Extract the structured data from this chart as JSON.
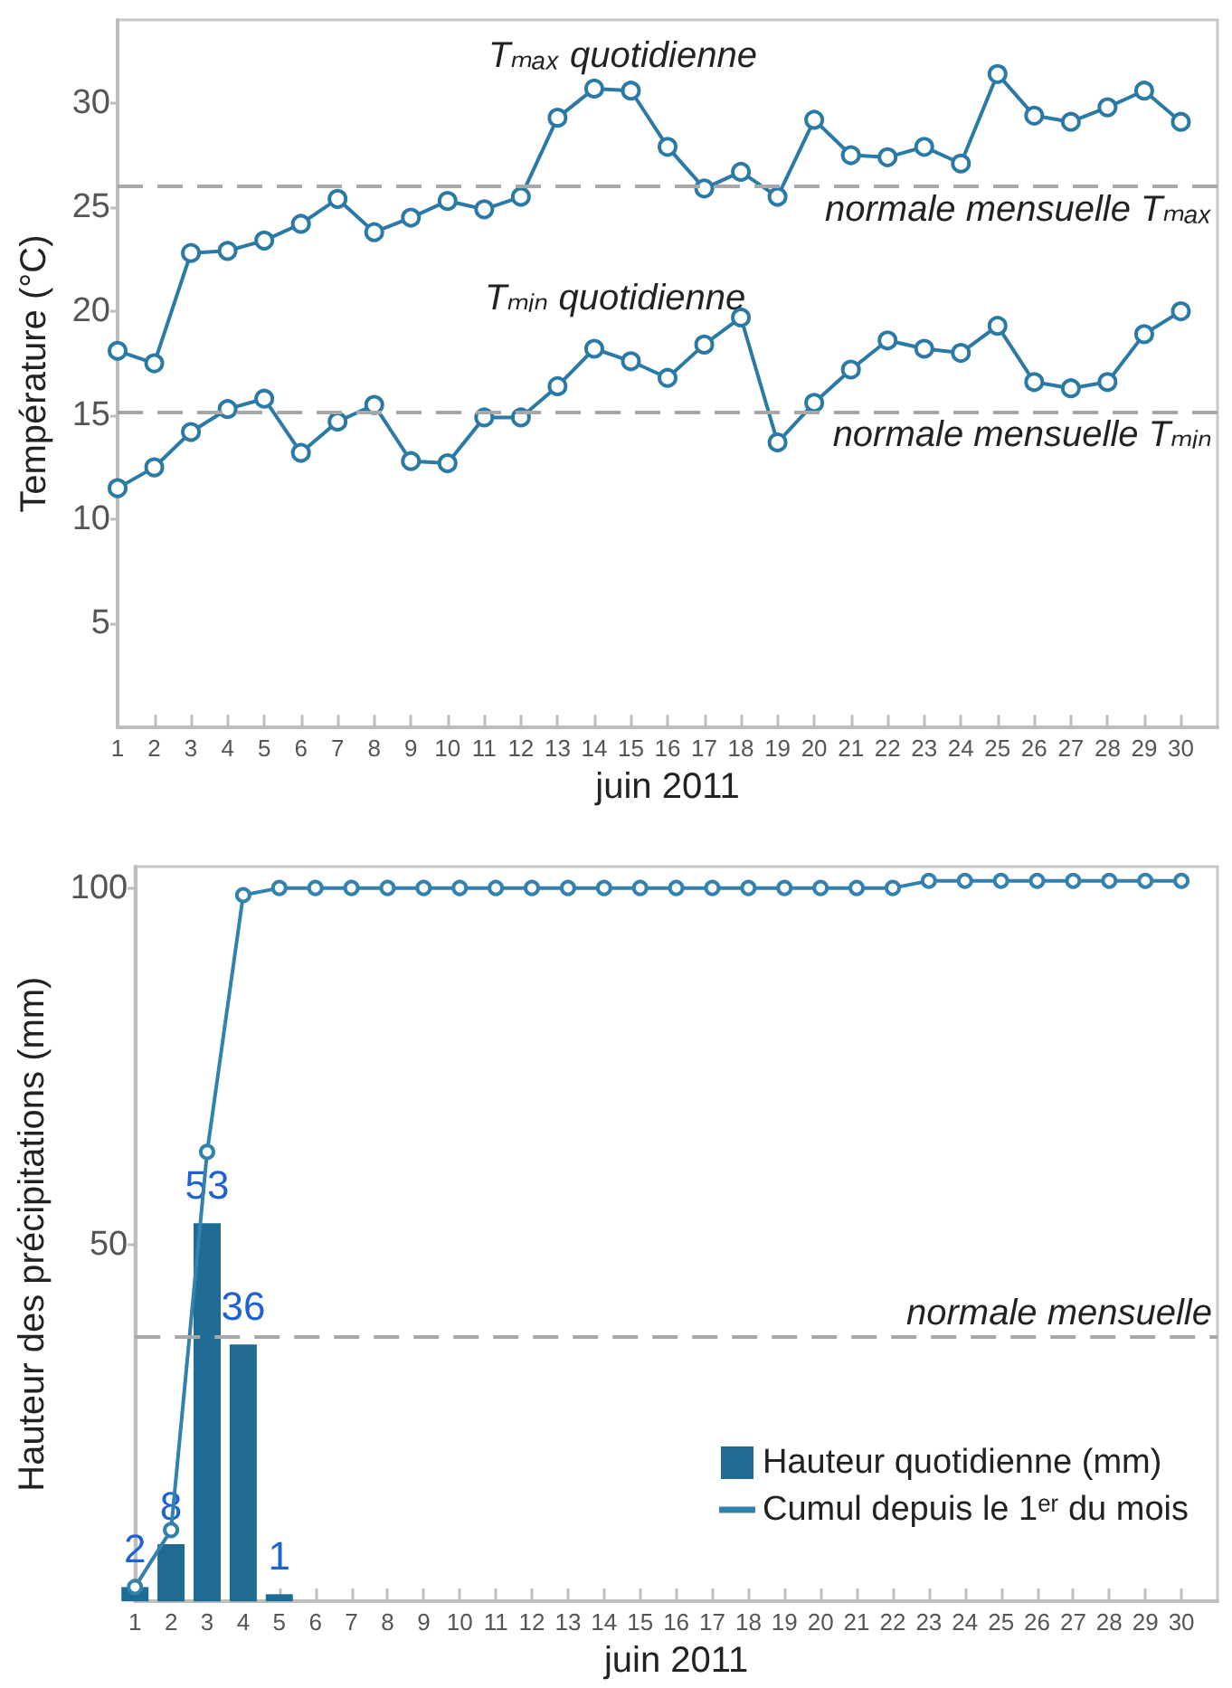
{
  "chart_data": [
    {
      "type": "line",
      "x": [
        1,
        2,
        3,
        4,
        5,
        6,
        7,
        8,
        9,
        10,
        11,
        12,
        13,
        14,
        15,
        16,
        17,
        18,
        19,
        20,
        21,
        22,
        23,
        24,
        25,
        26,
        27,
        28,
        29,
        30
      ],
      "xlim": [
        1,
        31
      ],
      "xticks": [
        1,
        2,
        3,
        4,
        5,
        6,
        7,
        8,
        9,
        10,
        11,
        12,
        13,
        14,
        15,
        16,
        17,
        18,
        19,
        20,
        21,
        22,
        23,
        24,
        25,
        26,
        27,
        28,
        29,
        30
      ],
      "xlabel": "juin 2011",
      "ylabel": "Température (°C)",
      "ylim": [
        0,
        34
      ],
      "yticks": [
        5,
        10,
        15,
        20,
        25,
        30
      ],
      "series": [
        {
          "name": "Tₘₐₓ quotidienne",
          "color": "#2a7aa5",
          "values": [
            18.1,
            17.5,
            22.8,
            22.9,
            23.4,
            24.2,
            25.4,
            23.8,
            24.5,
            25.3,
            24.9,
            25.5,
            29.3,
            30.7,
            30.6,
            27.9,
            25.9,
            26.7,
            25.5,
            29.2,
            27.5,
            27.4,
            27.9,
            27.1,
            31.4,
            29.4,
            29.1,
            29.8,
            30.6,
            29.1
          ]
        },
        {
          "name": "Tₘᵢₙ quotidienne",
          "color": "#2a7aa5",
          "values": [
            11.5,
            12.5,
            14.2,
            15.3,
            15.8,
            13.2,
            14.7,
            15.5,
            12.8,
            12.7,
            14.9,
            14.9,
            16.4,
            18.2,
            17.6,
            16.8,
            18.4,
            19.7,
            13.7,
            15.6,
            17.2,
            18.6,
            18.2,
            18.0,
            19.3,
            16.6,
            16.3,
            16.6,
            18.9,
            20.0
          ]
        }
      ],
      "ref_lines": [
        {
          "axis": "y",
          "value": 26,
          "label": "normale mensuelle Tₘₐₓ",
          "color": "#a8a8a8",
          "line_style": "dashed"
        },
        {
          "axis": "y",
          "value": 15.2,
          "label": "normale mensuelle Tₘᵢₙ",
          "color": "#a8a8a8",
          "line_style": "dashed"
        }
      ],
      "marker": "circle",
      "line_style": "solid",
      "grid": false,
      "legend": false
    },
    {
      "type": "bar",
      "x": [
        1,
        2,
        3,
        4,
        5,
        6,
        7,
        8,
        9,
        10,
        11,
        12,
        13,
        14,
        15,
        16,
        17,
        18,
        19,
        20,
        21,
        22,
        23,
        24,
        25,
        26,
        27,
        28,
        29,
        30
      ],
      "xlim": [
        1,
        31
      ],
      "xticks": [
        1,
        2,
        3,
        4,
        5,
        6,
        7,
        8,
        9,
        10,
        11,
        12,
        13,
        14,
        15,
        16,
        17,
        18,
        19,
        20,
        21,
        22,
        23,
        24,
        25,
        26,
        27,
        28,
        29,
        30
      ],
      "xlabel": "juin 2011",
      "ylabel": "Hauteur des précipitations (mm)",
      "ylim": [
        0,
        103
      ],
      "yticks": [
        50,
        100
      ],
      "series": [
        {
          "name": "Hauteur quotidienne (mm)",
          "color": "#1f6b94",
          "values": [
            2,
            8,
            53,
            36,
            1,
            0,
            0,
            0,
            0,
            0,
            0,
            0,
            0,
            0,
            0,
            0,
            0,
            0,
            0,
            0,
            0,
            0,
            0,
            0,
            0,
            0,
            0,
            0,
            0,
            0
          ],
          "value_labels": [
            "2",
            "8",
            "53",
            "36",
            "1",
            null,
            null,
            null,
            null,
            null,
            null,
            null,
            null,
            null,
            null,
            null,
            null,
            null,
            null,
            null,
            null,
            null,
            null,
            null,
            null,
            null,
            null,
            null,
            null,
            null
          ]
        },
        {
          "name": "Cumul depuis le 1ᵉʳ du mois",
          "type": "line",
          "color": "#3381ad",
          "values": [
            2,
            10,
            63,
            99,
            100,
            100,
            100,
            100,
            100,
            100,
            100,
            100,
            100,
            100,
            100,
            100,
            100,
            100,
            100,
            100,
            100,
            100,
            101,
            101,
            101,
            101,
            101,
            101,
            101,
            101
          ]
        }
      ],
      "ref_lines": [
        {
          "axis": "y",
          "value": 37,
          "label": "normale mensuelle",
          "color": "#a8a8a8",
          "line_style": "dashed"
        }
      ],
      "marker": "circle",
      "line_style": "solid",
      "grid": false,
      "legend": "bottom right"
    }
  ]
}
